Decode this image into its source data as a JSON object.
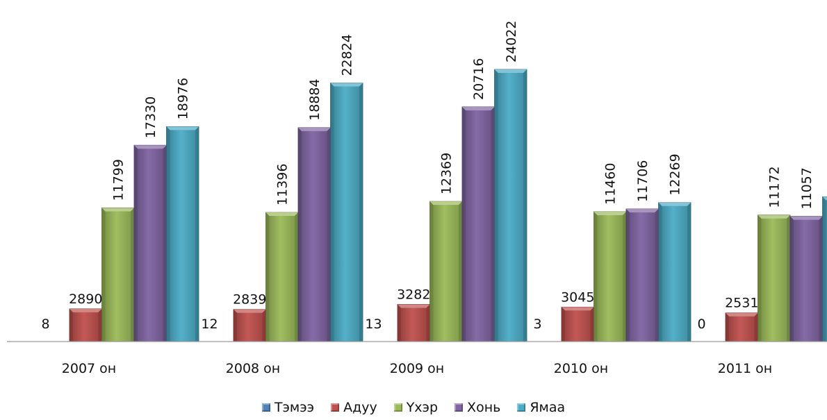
{
  "chart_data": {
    "type": "bar",
    "categories": [
      "2007 он",
      "2008 он",
      "2009 он",
      "2010 он",
      "2011 он"
    ],
    "series": [
      {
        "name": "Тэмээ",
        "color": "#4F81BD",
        "values": [
          8,
          12,
          13,
          3,
          0
        ]
      },
      {
        "name": "Адуу",
        "color": "#C0504D",
        "values": [
          2890,
          2839,
          3282,
          3045,
          2531
        ]
      },
      {
        "name": "Үхэр",
        "color": "#9BBB59",
        "values": [
          11799,
          11396,
          12369,
          11460,
          11172
        ]
      },
      {
        "name": "Хонь",
        "color": "#8064A2",
        "values": [
          17330,
          18884,
          20716,
          11706,
          11057
        ]
      },
      {
        "name": "Ямаа",
        "color": "#4BACC6",
        "values": [
          18976,
          22824,
          24022,
          12269,
          12785
        ]
      }
    ],
    "ylim": [
      0,
      26500
    ],
    "grid": false,
    "legend_position": "bottom"
  }
}
